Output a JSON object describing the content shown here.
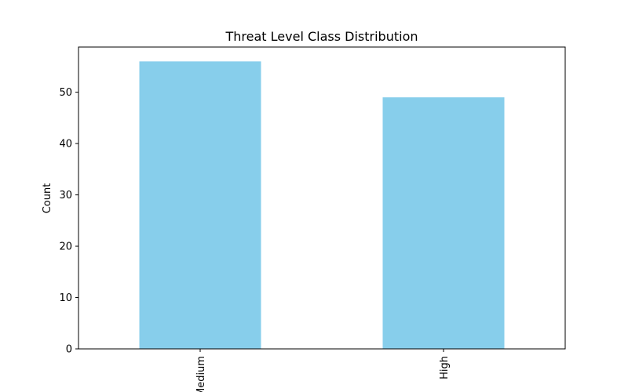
{
  "chart_data": {
    "type": "bar",
    "title": "Threat Level Class Distribution",
    "xlabel": "",
    "ylabel": "Count",
    "categories": [
      "Medium",
      "High"
    ],
    "values": [
      56,
      49
    ],
    "ylim": [
      0,
      58.8
    ],
    "yticks": [
      0,
      10,
      20,
      30,
      40,
      50
    ],
    "bar_color": "#87CEEB",
    "grid": false,
    "legend": "none"
  }
}
